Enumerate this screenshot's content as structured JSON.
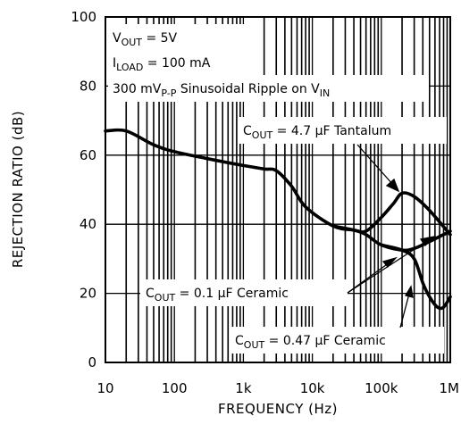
{
  "chart_data": {
    "type": "line",
    "xlabel": "FREQUENCY (Hz)",
    "ylabel": "REJECTION RATIO (dB)",
    "xscale": "log",
    "xlim": [
      10,
      1000000
    ],
    "ylim": [
      0,
      100
    ],
    "x_ticks": [
      10,
      100,
      1000,
      10000,
      100000,
      1000000
    ],
    "x_tick_labels": [
      "10",
      "100",
      "1k",
      "10k",
      "100k",
      "1M"
    ],
    "y_ticks": [
      0,
      20,
      40,
      60,
      80,
      100
    ],
    "y_tick_labels": [
      "0",
      "20",
      "40",
      "60",
      "80",
      "100"
    ],
    "grid": true,
    "conditions": {
      "vout": {
        "main": "V",
        "sub": "OUT",
        "rest": " = 5V"
      },
      "iload": {
        "main": "I",
        "sub": "LOAD",
        "rest": " = 100 mA"
      },
      "ripple": {
        "pre": "300 mV",
        "sub1": "P-P",
        "mid": " Sinusoidal Ripple on V",
        "sub2": "IN"
      }
    },
    "series": [
      {
        "label": {
          "main": "C",
          "sub": "OUT",
          "rest": " = 4.7 μF Tantalum"
        },
        "x": [
          10,
          20,
          50,
          100,
          300,
          1000,
          2000,
          3000,
          5000,
          8000,
          20000,
          40000,
          60000,
          100000,
          150000,
          200000,
          300000,
          500000,
          1000000
        ],
        "y": [
          67,
          67,
          63,
          61,
          59,
          57,
          56,
          55.5,
          51,
          45,
          39.5,
          38.3,
          38,
          42,
          46,
          49,
          48,
          44,
          37
        ]
      },
      {
        "label": {
          "main": "C",
          "sub": "OUT",
          "rest": " = 0.1 μF Ceramic"
        },
        "x": [
          20000,
          40000,
          60000,
          100000,
          200000,
          300000,
          500000,
          800000,
          1000000
        ],
        "y": [
          39.5,
          38.3,
          37,
          34,
          32.5,
          33,
          35,
          37,
          38
        ]
      },
      {
        "label": {
          "main": "C",
          "sub": "OUT",
          "rest": " = 0.47 μF Ceramic"
        },
        "x": [
          100000,
          200000,
          300000,
          400000,
          500000,
          650000,
          800000,
          1000000
        ],
        "y": [
          34,
          32.5,
          30,
          23,
          19,
          16,
          16,
          19
        ]
      }
    ]
  }
}
